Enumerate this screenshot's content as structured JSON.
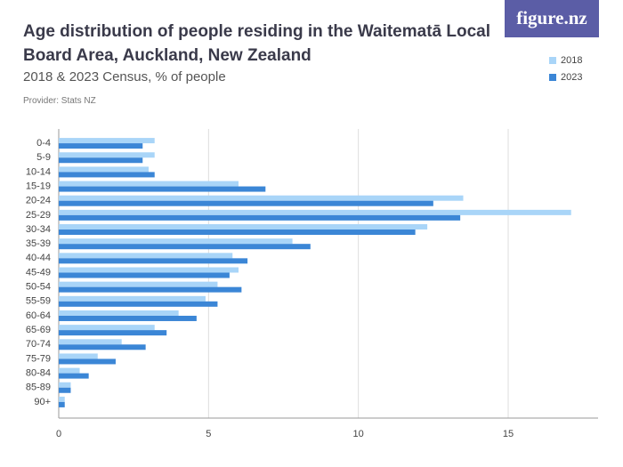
{
  "chart_data": {
    "type": "hbar",
    "title": "Age distribution of people residing in the Waitematā Local Board Area, Auckland, New Zealand",
    "subtitle": "2018 & 2023 Census, % of people",
    "source": "Provider: Stats NZ",
    "brand": "figure.nz",
    "categories": [
      "0-4",
      "5-9",
      "10-14",
      "15-19",
      "20-24",
      "25-29",
      "30-34",
      "35-39",
      "40-44",
      "45-49",
      "50-54",
      "55-59",
      "60-64",
      "65-69",
      "70-74",
      "75-79",
      "80-84",
      "85-89",
      "90+"
    ],
    "series": [
      {
        "name": "2018",
        "color": "#a9d5f8",
        "values": [
          3.2,
          3.2,
          3.0,
          6.0,
          13.5,
          17.1,
          12.3,
          7.8,
          5.8,
          6.0,
          5.3,
          4.9,
          4.0,
          3.2,
          2.1,
          1.3,
          0.7,
          0.4,
          0.2
        ]
      },
      {
        "name": "2023",
        "color": "#3b86d6",
        "values": [
          2.8,
          2.8,
          3.2,
          6.9,
          12.5,
          13.4,
          11.9,
          8.4,
          6.3,
          5.7,
          6.1,
          5.3,
          4.6,
          3.6,
          2.9,
          1.9,
          1.0,
          0.4,
          0.2
        ]
      }
    ],
    "xlim": [
      0,
      18
    ],
    "xticks": [
      0,
      5,
      10,
      15
    ],
    "grid": true,
    "legend": "top-right"
  }
}
